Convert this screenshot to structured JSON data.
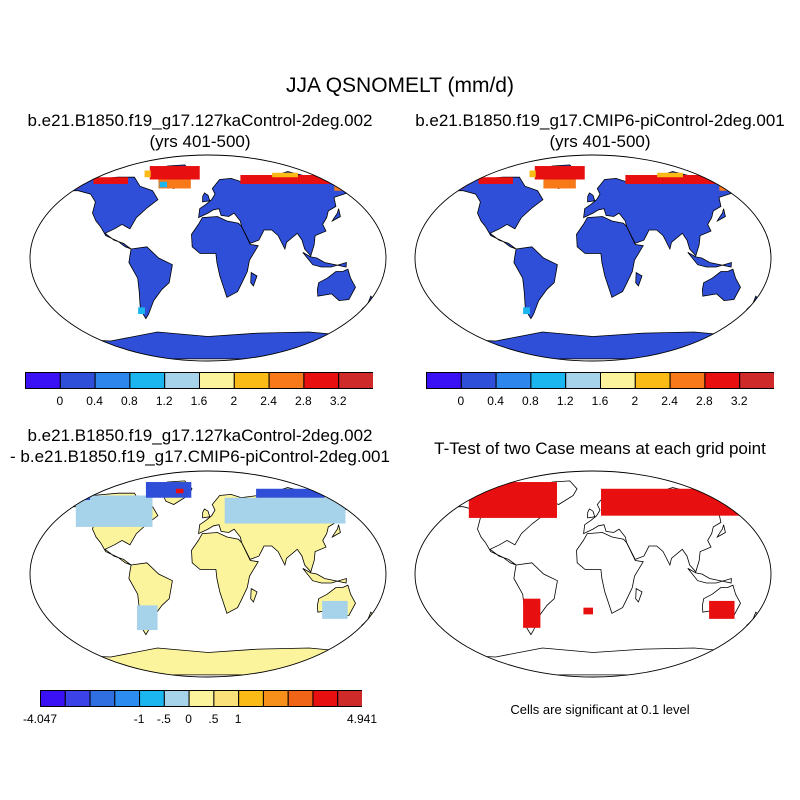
{
  "title": "JJA QSNOMELT (mm/d)",
  "panels": [
    {
      "id": "case1",
      "title_line1": "b.e21.B1850.f19_g17.127kaControl-2deg.002",
      "title_line2": "(yrs 401-500)"
    },
    {
      "id": "case2",
      "title_line1": "b.e21.B1850.f19_g17.CMIP6-piControl-2deg.001",
      "title_line2": "(yrs 401-500)"
    },
    {
      "id": "diff",
      "title_line1": "b.e21.B1850.f19_g17.127kaControl-2deg.002",
      "title_line2": "- b.e21.B1850.f19_g17.CMIP6-piControl-2deg.001"
    },
    {
      "id": "ttest",
      "title_line1": "T-Test of two Case means at each grid point",
      "title_line2": ""
    }
  ],
  "colorbar_top": {
    "colors": [
      "#3a10f5",
      "#2f4fd8",
      "#2d86ec",
      "#1bb6f0",
      "#a6d2ea",
      "#fbf49c",
      "#fbbb17",
      "#f7791a",
      "#e70f0f",
      "#cf2a2a"
    ],
    "labels": [
      "0",
      "0.4",
      "0.8",
      "1.2",
      "1.6",
      "2",
      "2.4",
      "2.8",
      "3.2"
    ]
  },
  "colorbar_diff": {
    "colors": [
      "#3a10f5",
      "#3b42e8",
      "#2f6fe2",
      "#2d8cef",
      "#1bb6f0",
      "#a6d2ea",
      "#fbf49c",
      "#fae17a",
      "#fbbb17",
      "#f7901a",
      "#f06418",
      "#e70f0f",
      "#cf2a2a"
    ],
    "labels": [
      "-4.047",
      "-1",
      "-.5",
      "0",
      ".5",
      "1",
      "4.941"
    ]
  },
  "note": "Cells are significant at 0.1 level",
  "map_colors": {
    "land_base": "#2f4fd8",
    "diff_land": "#fbf49c",
    "diff_light": "#a6d2ea",
    "sig": "#e70f0f",
    "hot": "#e70f0f",
    "warm": "#f7791a",
    "yellow": "#fbbb17",
    "cyan": "#1bb6f0"
  }
}
